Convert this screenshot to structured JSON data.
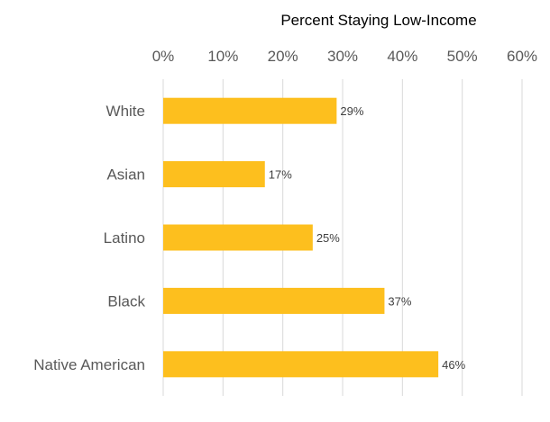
{
  "chart_data": {
    "type": "bar",
    "orientation": "horizontal",
    "title": "Percent Staying Low-Income",
    "categories": [
      "White",
      "Asian",
      "Latino",
      "Black",
      "Native American"
    ],
    "values": [
      29,
      17,
      25,
      37,
      46
    ],
    "data_labels": [
      "29%",
      "17%",
      "25%",
      "37%",
      "46%"
    ],
    "xlim": [
      0,
      60
    ],
    "x_ticks": [
      "0%",
      "10%",
      "20%",
      "30%",
      "40%",
      "50%",
      "60%"
    ],
    "x_axis_position": "top",
    "grid": true,
    "legend": "none",
    "colors": {
      "bar": "#FDBF1E",
      "grid": "#D9D9D9",
      "text": "#595959",
      "label": "#404040"
    }
  }
}
